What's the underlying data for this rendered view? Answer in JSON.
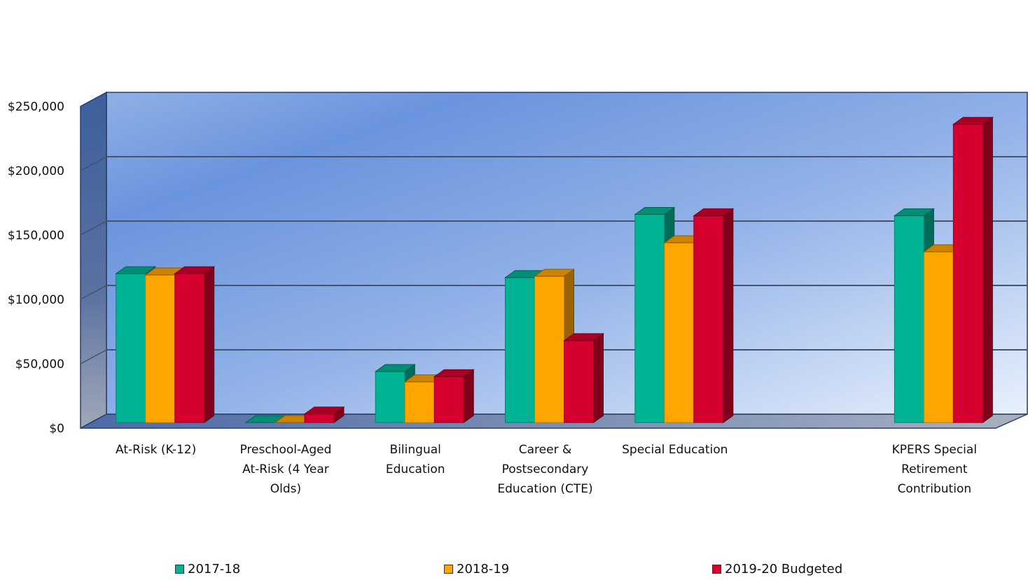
{
  "chart_data": {
    "type": "bar",
    "categories": [
      [
        "At-Risk (K-12)"
      ],
      [
        "Preschool-Aged",
        "At-Risk (4 Year",
        "Olds)"
      ],
      [
        "Bilingual",
        "Education"
      ],
      [
        "Career &",
        "Postsecondary",
        "Education (CTE)"
      ],
      [
        "Special Education"
      ],
      [
        ""
      ],
      [
        "KPERS Special",
        "Retirement",
        "Contribution"
      ]
    ],
    "series": [
      {
        "name": "2017-18",
        "color": "#00b394",
        "values": [
          120000,
          0,
          44000,
          117000,
          166000,
          null,
          165000
        ]
      },
      {
        "name": "2018-19",
        "color": "#ffa500",
        "values": [
          119000,
          0,
          36000,
          118000,
          144000,
          null,
          137000
        ]
      },
      {
        "name": "2019-20 Budgeted",
        "color": "#d6002f",
        "values": [
          120000,
          11000,
          40000,
          68000,
          165000,
          null,
          236000
        ]
      }
    ],
    "ylim": [
      0,
      250000
    ],
    "yticks": [
      "$0",
      "$50,000",
      "$100,000",
      "$150,000",
      "$200,000",
      "$250,000"
    ],
    "ytick_values": [
      0,
      50000,
      100000,
      150000,
      200000,
      250000
    ],
    "grid": true,
    "legend_position": "bottom"
  }
}
